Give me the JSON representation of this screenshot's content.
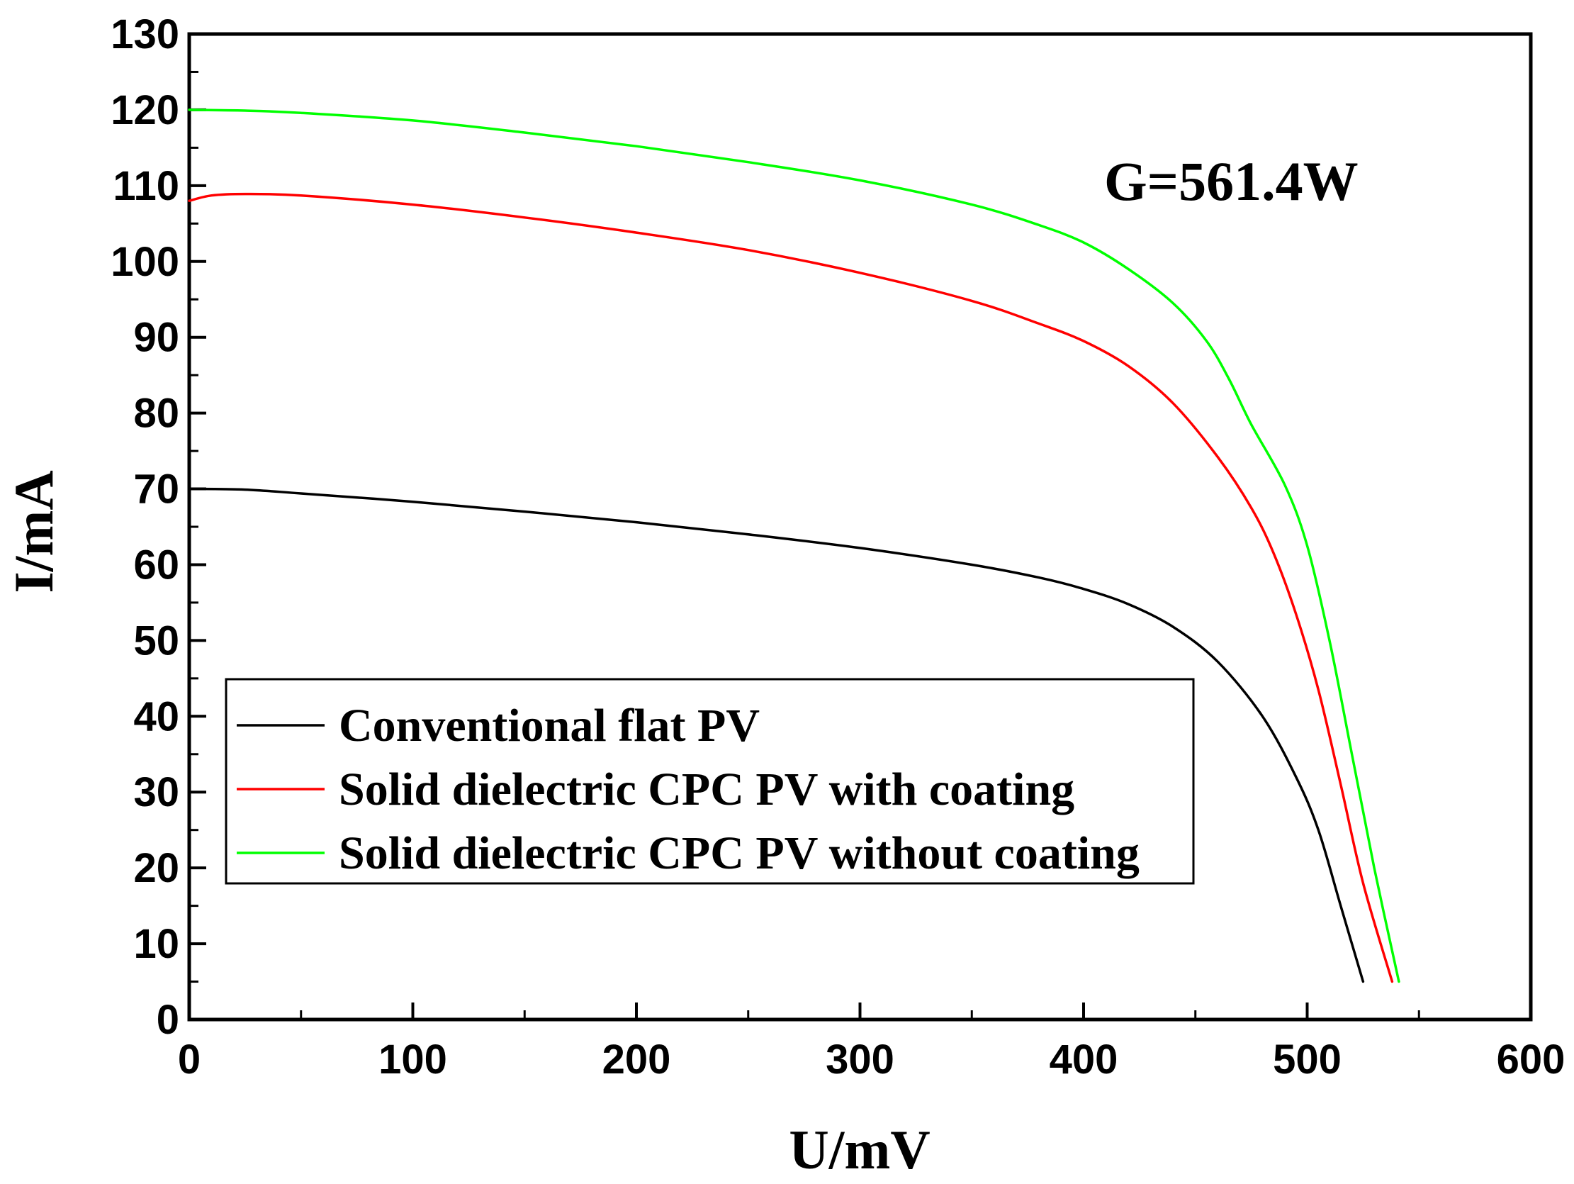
{
  "chart_data": {
    "type": "line",
    "title": "",
    "xlabel": "U/mV",
    "ylabel": "I/mA",
    "xlim": [
      0,
      600
    ],
    "ylim": [
      0,
      130
    ],
    "x_ticks": [
      0,
      100,
      200,
      300,
      400,
      500,
      600
    ],
    "y_ticks": [
      0,
      10,
      20,
      30,
      40,
      50,
      60,
      70,
      80,
      90,
      100,
      110,
      120,
      130
    ],
    "grid": false,
    "legend_position": "bottom-left",
    "annotation": "G=561.4W",
    "series": [
      {
        "name": "Conventional flat PV",
        "color": "#000000",
        "x": [
          0,
          25,
          50,
          100,
          150,
          200,
          250,
          300,
          350,
          380,
          400,
          420,
          440,
          460,
          480,
          495,
          505,
          515,
          525
        ],
        "y": [
          70,
          69.9,
          69.4,
          68.3,
          67,
          65.6,
          64,
          62.2,
          60,
          58.3,
          56.8,
          54.8,
          51.8,
          47.2,
          40,
          32,
          25,
          15,
          5
        ]
      },
      {
        "name": "Solid dielectric CPC PV with coating",
        "color": "#ff0000",
        "x": [
          0,
          10,
          25,
          50,
          100,
          150,
          200,
          250,
          300,
          350,
          380,
          400,
          420,
          440,
          460,
          475,
          485,
          495,
          505,
          515,
          525,
          538
        ],
        "y": [
          108,
          108.7,
          108.9,
          108.7,
          107.5,
          105.8,
          103.8,
          101.5,
          98.5,
          94.8,
          91.8,
          89.5,
          86.2,
          81.3,
          74.2,
          67.5,
          61.5,
          53.5,
          43.5,
          31,
          18,
          5
        ]
      },
      {
        "name": "Solid dielectric CPC PV without coating",
        "color": "#00ff00",
        "x": [
          0,
          25,
          50,
          100,
          150,
          200,
          250,
          300,
          350,
          380,
          400,
          420,
          440,
          455,
          465,
          475,
          490,
          500,
          510,
          520,
          530,
          541
        ],
        "y": [
          120,
          119.9,
          119.6,
          118.6,
          117,
          115.2,
          113.1,
          110.7,
          107.5,
          104.8,
          102.5,
          99,
          94.5,
          89.5,
          84.5,
          78.5,
          70.5,
          62.5,
          50,
          35,
          20,
          5
        ]
      }
    ]
  }
}
